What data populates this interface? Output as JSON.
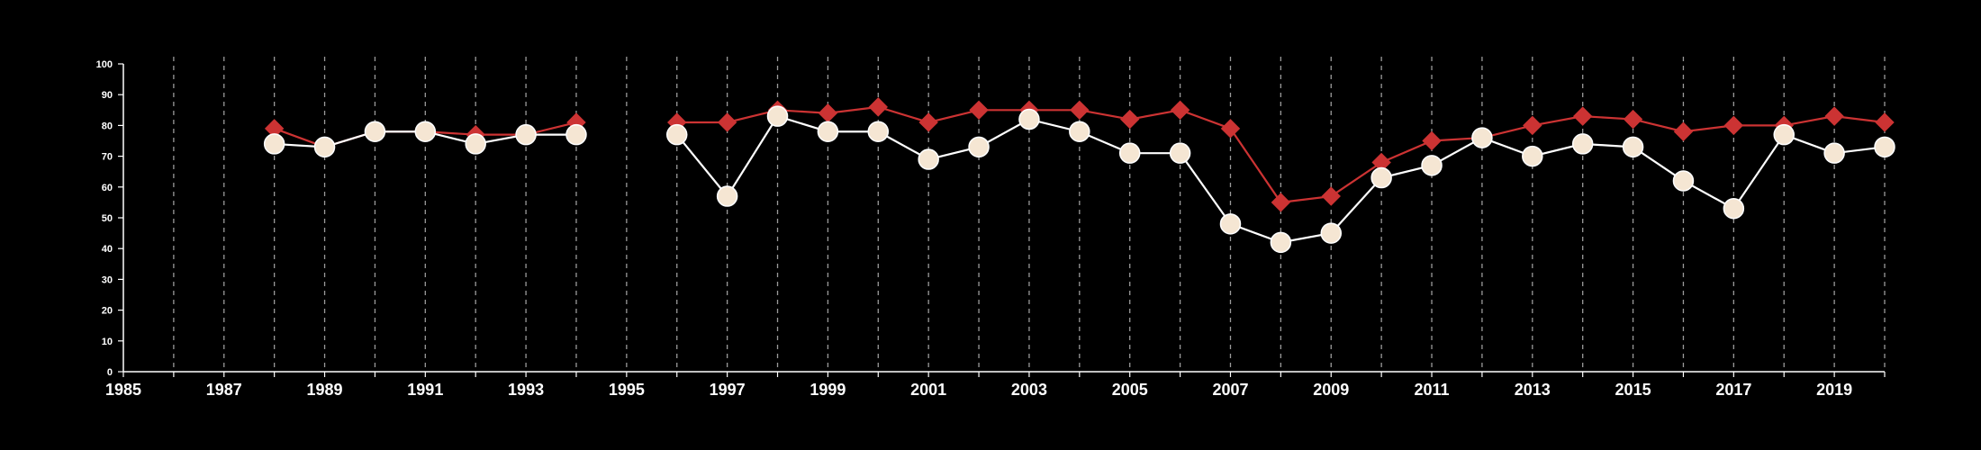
{
  "chart_data": {
    "type": "line",
    "title": "",
    "xlabel": "",
    "ylabel": "",
    "xlim": [
      1985,
      2020
    ],
    "ylim": [
      0,
      100
    ],
    "x_ticks": [
      "1985",
      "1987",
      "1989",
      "1991",
      "1993",
      "1995",
      "1997",
      "1999",
      "2001",
      "2003",
      "2005",
      "2007",
      "2009",
      "2011",
      "2013",
      "2015",
      "2017",
      "2019"
    ],
    "y_ticks": [
      "0",
      "10",
      "20",
      "30",
      "40",
      "50",
      "60",
      "70",
      "80",
      "90",
      "100"
    ],
    "grid": "vertical dashed lines at every year",
    "legend": "none",
    "background": "#000000",
    "series": [
      {
        "marker": "diamond",
        "color": "#cc3333",
        "segments": [
          {
            "x": [
              1988,
              1989,
              1990,
              1991,
              1992,
              1993,
              1994
            ],
            "y": [
              79,
              73,
              78,
              78,
              77,
              77,
              81
            ]
          },
          {
            "x": [
              1996,
              1997,
              1998,
              1999,
              2000,
              2001,
              2002,
              2003,
              2004,
              2005,
              2006,
              2007,
              2008,
              2009,
              2010,
              2011,
              2012,
              2013,
              2014,
              2015,
              2016,
              2017,
              2018,
              2019,
              2020
            ],
            "y": [
              81,
              81,
              85,
              84,
              86,
              81,
              85,
              85,
              85,
              82,
              85,
              79,
              55,
              57,
              68,
              75,
              76,
              80,
              83,
              82,
              78,
              80,
              80,
              83,
              81
            ]
          }
        ]
      },
      {
        "marker": "circle",
        "color": "#ffffff",
        "fill": "#f5e6d3",
        "segments": [
          {
            "x": [
              1988,
              1989,
              1990,
              1991,
              1992,
              1993,
              1994
            ],
            "y": [
              74,
              73,
              78,
              78,
              74,
              77,
              77
            ]
          },
          {
            "x": [
              1996,
              1997,
              1998,
              1999,
              2000,
              2001,
              2002,
              2003,
              2004,
              2005,
              2006,
              2007,
              2008,
              2009,
              2010,
              2011,
              2012,
              2013,
              2014,
              2015,
              2016,
              2017,
              2018,
              2019,
              2020
            ],
            "y": [
              77,
              57,
              83,
              78,
              78,
              69,
              73,
              82,
              78,
              71,
              71,
              48,
              42,
              45,
              63,
              67,
              76,
              70,
              74,
              73,
              62,
              53,
              77,
              71,
              73
            ]
          }
        ]
      }
    ]
  }
}
